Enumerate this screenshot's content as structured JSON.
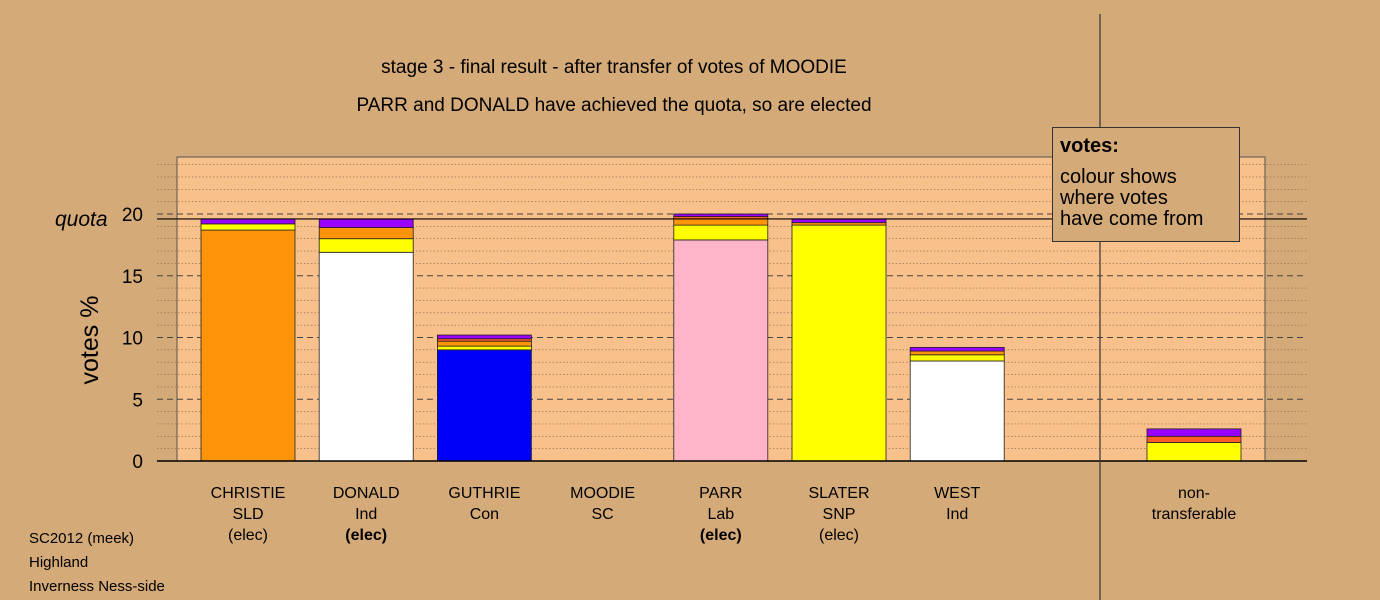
{
  "title": "stage 3 - final result - after transfer of votes of MOODIE",
  "subtitle": "PARR and DONALD have achieved the quota, so are elected",
  "footer": [
    "SC2012 (meek)",
    "Highland",
    "Inverness Ness-side"
  ],
  "legend": {
    "title": "votes:",
    "lines": [
      "colour shows",
      "where votes",
      "have come from"
    ]
  },
  "colors": {
    "SLD": "#ff9409",
    "Ind": "#ffffff",
    "Con": "#0000f8",
    "SC": "#b5522a",
    "Lab": "#ffb4c8",
    "SNP": "#ffff00",
    "transfer_red": "#ff5a28",
    "transfer_purple": "#9900ff",
    "plot_bg": "#f8c08a"
  },
  "chart_data": {
    "type": "bar",
    "stacked": true,
    "ylabel": "votes %",
    "ylim": [
      0,
      24
    ],
    "yticks": [
      0,
      5,
      10,
      15,
      20
    ],
    "quota": 19.6,
    "quota_label": "quota",
    "categories": [
      {
        "name": "CHRISTIE",
        "party": "SLD",
        "status": "(elec)",
        "bold_status": false
      },
      {
        "name": "DONALD",
        "party": "Ind",
        "status": "(elec)",
        "bold_status": true
      },
      {
        "name": "GUTHRIE",
        "party": "Con",
        "status": "",
        "bold_status": false
      },
      {
        "name": "MOODIE",
        "party": "SC",
        "status": "",
        "bold_status": false
      },
      {
        "name": "PARR",
        "party": "Lab",
        "status": "(elec)",
        "bold_status": true
      },
      {
        "name": "SLATER",
        "party": "SNP",
        "status": "(elec)",
        "bold_status": false
      },
      {
        "name": "WEST",
        "party": "Ind",
        "status": "",
        "bold_status": false
      }
    ],
    "segments": [
      [
        {
          "color": "#ff9409",
          "value": 18.7
        },
        {
          "color": "#ffff00",
          "value": 0.5
        },
        {
          "color": "#9900ff",
          "value": 0.4
        }
      ],
      [
        {
          "color": "#ffffff",
          "value": 16.9
        },
        {
          "color": "#ffff00",
          "value": 1.1
        },
        {
          "color": "#ff9409",
          "value": 0.9
        },
        {
          "color": "#9900ff",
          "value": 0.7
        }
      ],
      [
        {
          "color": "#0000f8",
          "value": 9.0
        },
        {
          "color": "#ffff00",
          "value": 0.3
        },
        {
          "color": "#ff9409",
          "value": 0.4
        },
        {
          "color": "#ff5a28",
          "value": 0.2
        },
        {
          "color": "#9900ff",
          "value": 0.3
        }
      ],
      [],
      [
        {
          "color": "#ffb4c8",
          "value": 17.9
        },
        {
          "color": "#ffff00",
          "value": 1.2
        },
        {
          "color": "#ff9409",
          "value": 0.5
        },
        {
          "color": "#ff5a28",
          "value": 0.2
        },
        {
          "color": "#9900ff",
          "value": 0.2
        }
      ],
      [
        {
          "color": "#ffff00",
          "value": 19.1
        },
        {
          "color": "#ff9409",
          "value": 0.2
        },
        {
          "color": "#9900ff",
          "value": 0.3
        }
      ],
      [
        {
          "color": "#ffffff",
          "value": 8.1
        },
        {
          "color": "#ffff00",
          "value": 0.5
        },
        {
          "color": "#ff9409",
          "value": 0.3
        },
        {
          "color": "#9900ff",
          "value": 0.3
        }
      ]
    ],
    "nontransferable": {
      "label_lines": [
        "non-",
        "transferable"
      ],
      "segments": [
        {
          "color": "#ffff00",
          "value": 1.5
        },
        {
          "color": "#ff5a28",
          "value": 0.5
        },
        {
          "color": "#9900ff",
          "value": 0.6
        }
      ]
    }
  }
}
